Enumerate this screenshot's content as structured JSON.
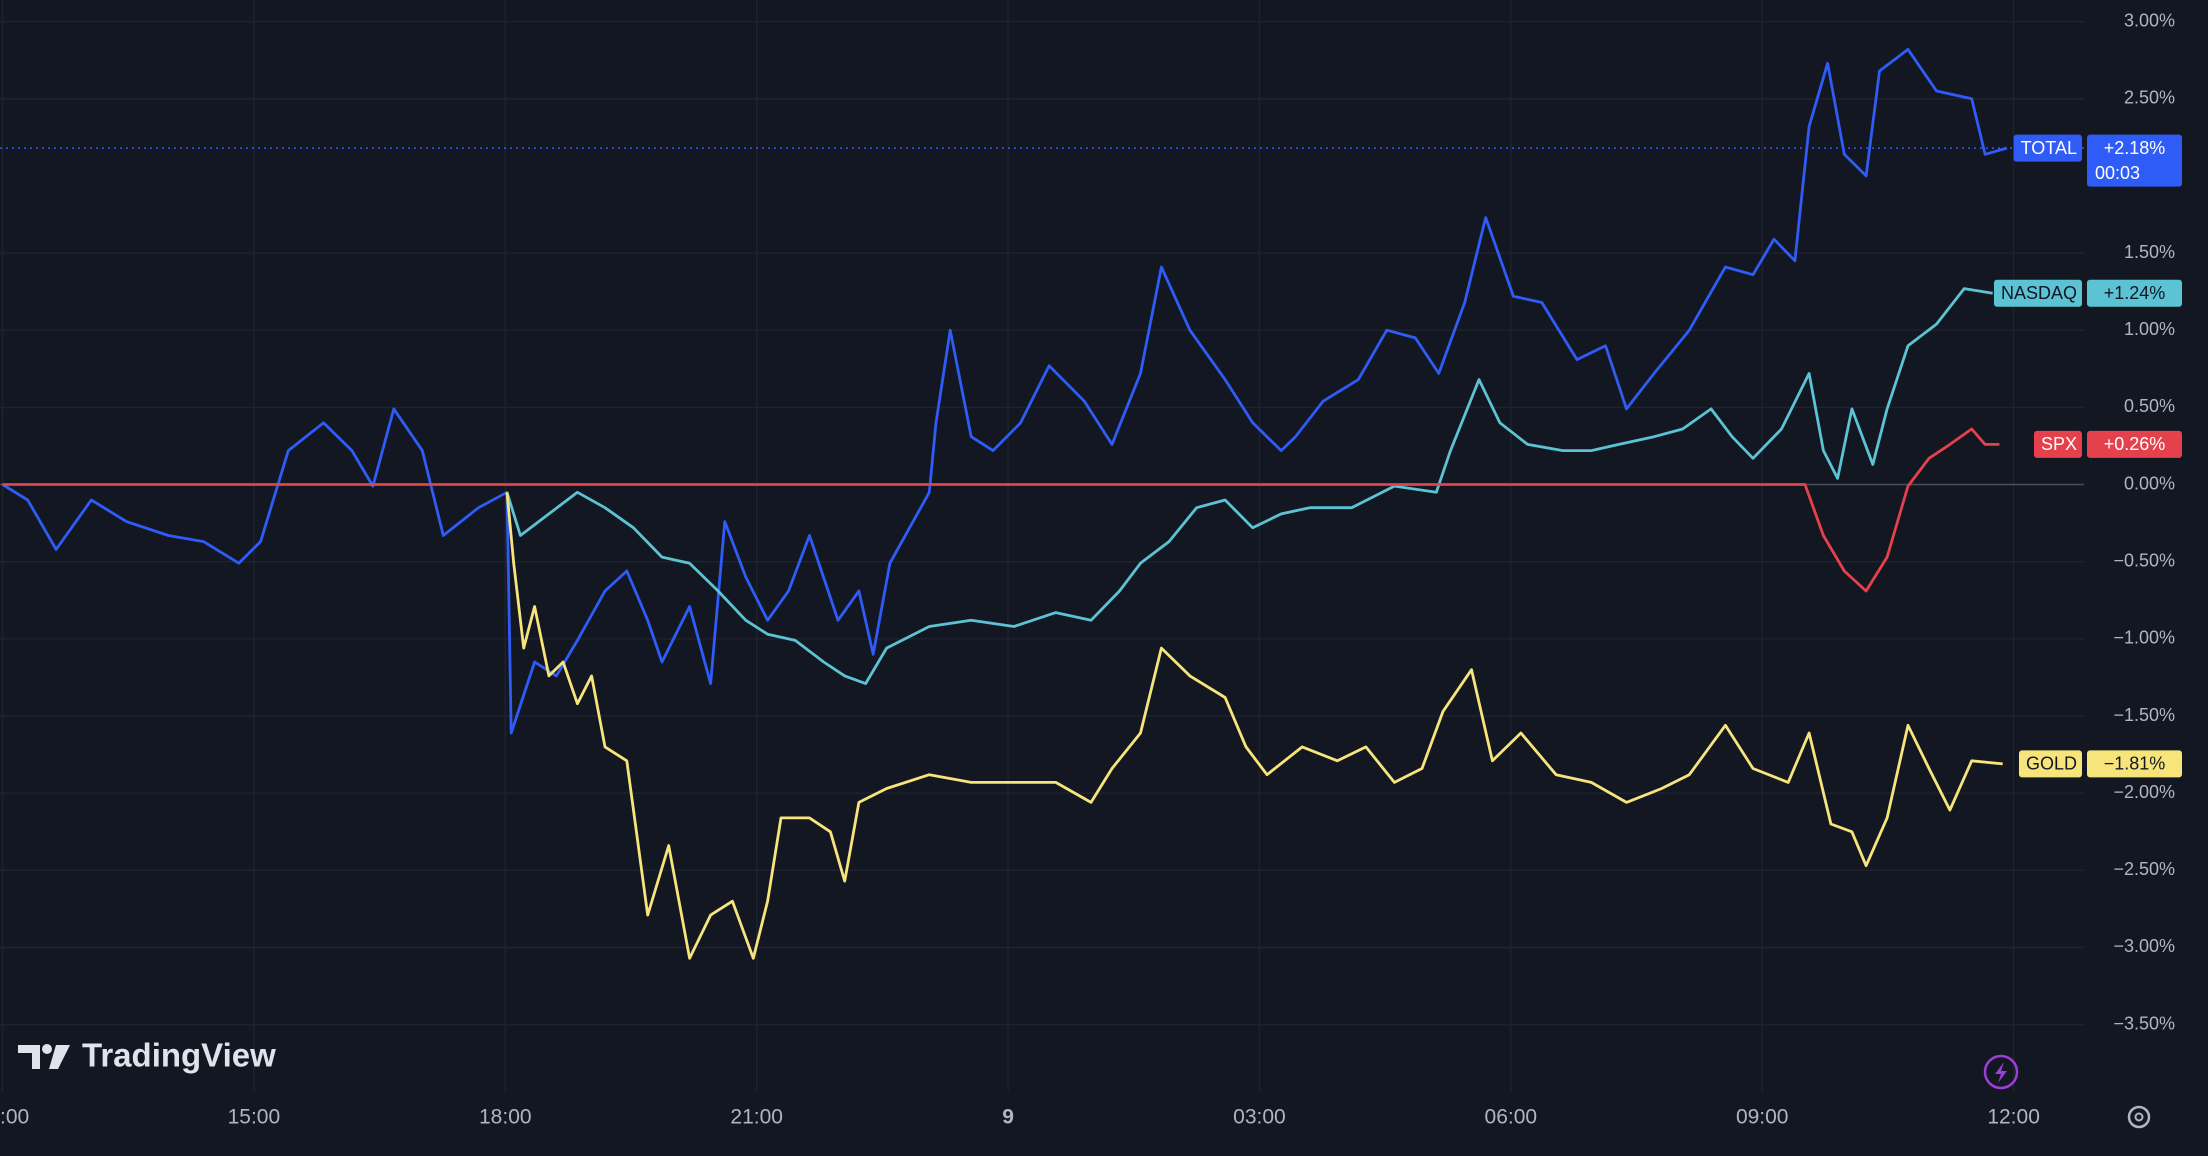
{
  "chart_data": {
    "type": "line",
    "brand": "TradingView",
    "xlim": [
      11.97,
      36.84
    ],
    "xticks": [
      {
        "value": 12,
        "label": ":00"
      },
      {
        "value": 15,
        "label": "15:00"
      },
      {
        "value": 18,
        "label": "18:00"
      },
      {
        "value": 21,
        "label": "21:00"
      },
      {
        "value": 24,
        "label": "9"
      },
      {
        "value": 27,
        "label": "03:00"
      },
      {
        "value": 30,
        "label": "06:00"
      },
      {
        "value": 33,
        "label": "09:00"
      },
      {
        "value": 36,
        "label": "12:00"
      }
    ],
    "ylim": [
      -3.93,
      3.14
    ],
    "yticks": [
      {
        "value": 3.0,
        "label": "3.00%"
      },
      {
        "value": 2.5,
        "label": "2.50%"
      },
      {
        "value": 1.5,
        "label": "1.50%"
      },
      {
        "value": 1.0,
        "label": "1.00%"
      },
      {
        "value": 0.5,
        "label": "0.50%"
      },
      {
        "value": 0.0,
        "label": "0.00%"
      },
      {
        "value": -0.5,
        "label": "−0.50%"
      },
      {
        "value": -1.0,
        "label": "−1.00%"
      },
      {
        "value": -1.5,
        "label": "−1.50%"
      },
      {
        "value": -2.0,
        "label": "−2.00%"
      },
      {
        "value": -2.5,
        "label": "−2.50%"
      },
      {
        "value": -3.0,
        "label": "−3.00%"
      },
      {
        "value": -3.5,
        "label": "−3.50%"
      }
    ],
    "grid": true,
    "series": [
      {
        "name": "TOTAL",
        "color": "#2f5cf6",
        "price_label": "+2.18%",
        "countdown": "00:03",
        "price_line": true,
        "x": [
          12.0,
          12.3,
          12.64,
          13.06,
          13.48,
          13.98,
          14.4,
          14.82,
          15.08,
          15.41,
          15.83,
          16.17,
          16.42,
          16.67,
          17.01,
          17.26,
          17.68,
          18.02,
          18.07,
          18.35,
          18.61,
          18.86,
          19.19,
          19.45,
          19.7,
          19.87,
          20.2,
          20.45,
          20.62,
          20.87,
          21.13,
          21.38,
          21.63,
          21.97,
          22.22,
          22.39,
          22.59,
          23.06,
          23.14,
          23.31,
          23.56,
          23.82,
          24.15,
          24.49,
          24.91,
          25.24,
          25.58,
          25.83,
          26.17,
          26.59,
          26.92,
          27.26,
          27.43,
          27.76,
          28.18,
          28.52,
          28.86,
          29.14,
          29.45,
          29.7,
          30.03,
          30.37,
          30.79,
          31.13,
          31.38,
          31.71,
          32.13,
          32.56,
          32.89,
          33.14,
          33.39,
          33.56,
          33.78,
          33.98,
          34.24,
          34.4,
          34.74,
          35.08,
          35.5,
          35.66,
          35.92
        ],
        "values": [
          0.0,
          -0.1,
          -0.42,
          -0.1,
          -0.24,
          -0.33,
          -0.37,
          -0.51,
          -0.37,
          0.22,
          0.4,
          0.22,
          -0.01,
          0.49,
          0.22,
          -0.33,
          -0.15,
          -0.05,
          -1.61,
          -1.15,
          -1.24,
          -1.01,
          -0.69,
          -0.56,
          -0.88,
          -1.15,
          -0.79,
          -1.29,
          -0.24,
          -0.6,
          -0.88,
          -0.69,
          -0.33,
          -0.88,
          -0.69,
          -1.1,
          -0.51,
          -0.05,
          0.4,
          1.0,
          0.31,
          0.22,
          0.4,
          0.77,
          0.54,
          0.26,
          0.72,
          1.41,
          1.0,
          0.68,
          0.4,
          0.22,
          0.31,
          0.54,
          0.68,
          1.0,
          0.95,
          0.72,
          1.18,
          1.73,
          1.22,
          1.18,
          0.81,
          0.9,
          0.49,
          0.72,
          1.0,
          1.41,
          1.36,
          1.59,
          1.45,
          2.32,
          2.73,
          2.14,
          2.0,
          2.68,
          2.82,
          2.55,
          2.5,
          2.14,
          2.18
        ]
      },
      {
        "name": "NASDAQ",
        "color": "#5cc3d4",
        "price_label": "+1.24%",
        "x": [
          18.02,
          18.18,
          18.52,
          18.86,
          19.19,
          19.53,
          19.87,
          20.2,
          20.54,
          20.87,
          21.13,
          21.46,
          21.8,
          22.05,
          22.3,
          22.55,
          23.06,
          23.56,
          24.07,
          24.57,
          24.99,
          25.33,
          25.58,
          25.92,
          26.25,
          26.59,
          26.92,
          27.26,
          27.6,
          28.1,
          28.61,
          29.11,
          29.28,
          29.62,
          29.87,
          30.2,
          30.62,
          30.96,
          31.29,
          31.71,
          32.05,
          32.39,
          32.64,
          32.89,
          33.23,
          33.56,
          33.73,
          33.9,
          34.07,
          34.32,
          34.49,
          34.74,
          35.08,
          35.41,
          35.75
        ],
        "values": [
          -0.05,
          -0.33,
          -0.19,
          -0.05,
          -0.15,
          -0.28,
          -0.47,
          -0.51,
          -0.69,
          -0.88,
          -0.97,
          -1.01,
          -1.15,
          -1.24,
          -1.29,
          -1.06,
          -0.92,
          -0.88,
          -0.92,
          -0.83,
          -0.88,
          -0.69,
          -0.51,
          -0.37,
          -0.15,
          -0.1,
          -0.28,
          -0.19,
          -0.15,
          -0.15,
          -0.01,
          -0.05,
          0.22,
          0.68,
          0.4,
          0.26,
          0.22,
          0.22,
          0.26,
          0.31,
          0.36,
          0.49,
          0.31,
          0.17,
          0.36,
          0.72,
          0.22,
          0.04,
          0.49,
          0.13,
          0.49,
          0.9,
          1.04,
          1.27,
          1.24
        ]
      },
      {
        "name": "SPX",
        "color": "#e5414c",
        "price_label": "+0.26%",
        "x": [
          12.0,
          33.51,
          33.73,
          33.98,
          34.24,
          34.49,
          34.74,
          34.99,
          35.24,
          35.5,
          35.66,
          35.83
        ],
        "values": [
          0,
          0,
          -0.33,
          -0.56,
          -0.69,
          -0.47,
          -0.01,
          0.17,
          0.26,
          0.36,
          0.26,
          0.26
        ]
      },
      {
        "name": "GOLD",
        "color": "#f7e57b",
        "price_label": "−1.81%",
        "x": [
          18.02,
          18.1,
          18.22,
          18.35,
          18.52,
          18.69,
          18.86,
          19.03,
          19.19,
          19.45,
          19.7,
          19.95,
          20.2,
          20.45,
          20.71,
          20.96,
          21.13,
          21.29,
          21.63,
          21.88,
          22.05,
          22.22,
          22.55,
          23.06,
          23.56,
          24.07,
          24.57,
          24.99,
          25.24,
          25.58,
          25.83,
          26.17,
          26.59,
          26.84,
          27.09,
          27.51,
          27.93,
          28.27,
          28.61,
          28.94,
          29.19,
          29.53,
          29.78,
          30.12,
          30.54,
          30.96,
          31.38,
          31.8,
          32.13,
          32.56,
          32.89,
          33.31,
          33.56,
          33.82,
          34.07,
          34.24,
          34.49,
          34.74,
          34.99,
          35.24,
          35.5,
          35.87
        ],
        "values": [
          -0.05,
          -0.51,
          -1.06,
          -0.79,
          -1.24,
          -1.15,
          -1.42,
          -1.24,
          -1.7,
          -1.79,
          -2.79,
          -2.34,
          -3.07,
          -2.79,
          -2.7,
          -3.07,
          -2.7,
          -2.16,
          -2.16,
          -2.25,
          -2.57,
          -2.06,
          -1.97,
          -1.88,
          -1.93,
          -1.93,
          -1.93,
          -2.06,
          -1.84,
          -1.61,
          -1.06,
          -1.24,
          -1.38,
          -1.7,
          -1.88,
          -1.7,
          -1.79,
          -1.7,
          -1.93,
          -1.84,
          -1.47,
          -1.2,
          -1.79,
          -1.61,
          -1.88,
          -1.93,
          -2.06,
          -1.97,
          -1.88,
          -1.56,
          -1.84,
          -1.93,
          -1.61,
          -2.2,
          -2.25,
          -2.47,
          -2.16,
          -1.56,
          -1.84,
          -2.11,
          -1.79,
          -1.81
        ]
      }
    ]
  }
}
